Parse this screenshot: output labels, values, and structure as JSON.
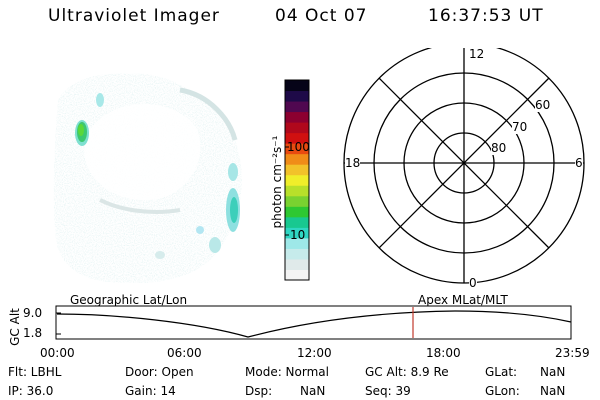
{
  "header": {
    "title": "Ultraviolet Imager",
    "date": "04 Oct 07",
    "time": "16:37:53 UT"
  },
  "colorbar": {
    "unit_label": "photon cm⁻²s⁻¹",
    "ticks": [
      "100",
      "10"
    ],
    "colors": [
      "#f4f4f4",
      "#e0eaea",
      "#c6ebeb",
      "#9ee8e8",
      "#2fd6c2",
      "#18c890",
      "#2ec832",
      "#7ad230",
      "#b8e02a",
      "#f0ee2a",
      "#f2c22a",
      "#f08c18",
      "#e84a10",
      "#d01010",
      "#b0081c",
      "#8c0030",
      "#500850",
      "#1e0a48",
      "#060418"
    ]
  },
  "polar": {
    "mlt_labels": {
      "top": "12",
      "left": "18",
      "right": "6",
      "bottom": "0"
    },
    "lat_labels": [
      "60",
      "70",
      "80"
    ]
  },
  "track": {
    "left_title": "Geographic Lat/Lon",
    "right_title": "Apex  MLat/MLT",
    "axis_label": "GC Alt",
    "y_ticks": [
      "9.0",
      "1.8"
    ],
    "x_ticks": [
      "00:00",
      "06:00",
      "12:00",
      "18:00",
      "23:59"
    ]
  },
  "info": {
    "filter": "Flt: LBHL",
    "ip": "IP: 36.0",
    "door": "Door: Open",
    "gain": "Gain: 14",
    "mode": "Mode: Normal",
    "dsp_label": "Dsp:",
    "dsp_value": "NaN",
    "gc_alt": "GC Alt: 8.9 Re",
    "seq": "Seq: 39",
    "glat_label": "GLat:",
    "glat_value": "NaN",
    "glon_label": "GLon:",
    "glon_value": "NaN"
  }
}
